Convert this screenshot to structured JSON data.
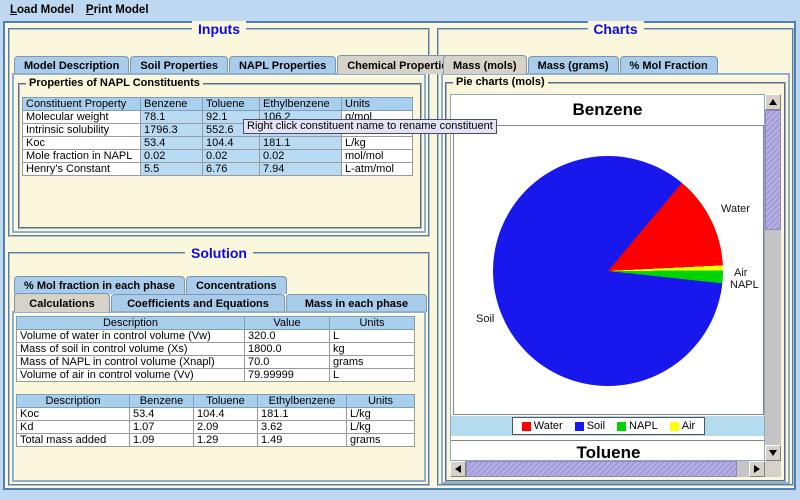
{
  "menubar": {
    "items": [
      "Load Model",
      "Print Model"
    ]
  },
  "inputs": {
    "title": "Inputs",
    "tabs": [
      "Model Description",
      "Soil Properties",
      "NAPL Properties",
      "Chemical Properties"
    ],
    "selected_tab": "Chemical Properties",
    "group_title": "Properties of NAPL Constituents",
    "table": {
      "headers": [
        "Constituent Property",
        "Benzene",
        "Toluene",
        "Ethylbenzene",
        "Units"
      ],
      "rows": [
        [
          "Molecular weight",
          "78.1",
          "92.1",
          "106.2",
          "g/mol"
        ],
        [
          "Intrinsic solubility",
          "1796.3",
          "552.6",
          "",
          ""
        ],
        [
          "Koc",
          "53.4",
          "104.4",
          "181.1",
          "L/kg"
        ],
        [
          "Mole fraction in NAPL",
          "0.02",
          "0.02",
          "0.02",
          "mol/mol"
        ],
        [
          "Henry's Constant",
          "5.5",
          "6.76",
          "7.94",
          "L-atm/mol"
        ]
      ]
    },
    "tooltip": "Right click constituent name to rename constituent"
  },
  "solution": {
    "title": "Solution",
    "tab_rows": [
      [
        "% Mol fraction in each phase",
        "Concentrations"
      ],
      [
        "Calculations",
        "Coefficients and Equations",
        "Mass in each phase"
      ]
    ],
    "selected_tab": "Calculations",
    "volumes_table": {
      "headers": [
        "Description",
        "Value",
        "Units"
      ],
      "rows": [
        [
          "Volume of water in control volume (Vw)",
          "320.0",
          "L"
        ],
        [
          "Mass of soil in control volume (Xs)",
          "1800.0",
          "kg"
        ],
        [
          "Mass of NAPL in control volume (Xnapl)",
          "70.0",
          "grams"
        ],
        [
          "Volume of air in control volume (Vv)",
          "79.99999",
          "L"
        ]
      ]
    },
    "coefficients_table": {
      "headers": [
        "Description",
        "Benzene",
        "Toluene",
        "Ethylbenzene",
        "Units"
      ],
      "rows": [
        [
          "Koc",
          "53.4",
          "104.4",
          "181.1",
          "L/kg"
        ],
        [
          "Kd",
          "1.07",
          "2.09",
          "3.62",
          "L/kg"
        ],
        [
          "Total mass added",
          "1.09",
          "1.29",
          "1.49",
          "grams"
        ]
      ]
    }
  },
  "charts": {
    "title": "Charts",
    "tabs": [
      "Mass (mols)",
      "Mass (grams)",
      "% Mol Fraction"
    ],
    "selected_tab": "Mass (mols)",
    "group_title": "Pie charts (mols)"
  },
  "chart_data": {
    "type": "pie",
    "title": "Benzene",
    "slices": [
      {
        "label": "Water",
        "color": "#ff0000",
        "pct": 13.1
      },
      {
        "label": "Air",
        "color": "#ffff00",
        "pct": 0.7
      },
      {
        "label": "NAPL",
        "color": "#00d400",
        "pct": 1.8
      },
      {
        "label": "Soil",
        "color": "#1717ee",
        "pct": 84.4
      }
    ],
    "rotation_from_top_deg": 40,
    "legend": [
      {
        "label": "Water",
        "color": "#ff0000"
      },
      {
        "label": "Soil",
        "color": "#1717ee"
      },
      {
        "label": "NAPL",
        "color": "#00d400"
      },
      {
        "label": "Air",
        "color": "#ffff00"
      }
    ],
    "legend_position": "bottom",
    "next_chart_title": "Toluene"
  }
}
